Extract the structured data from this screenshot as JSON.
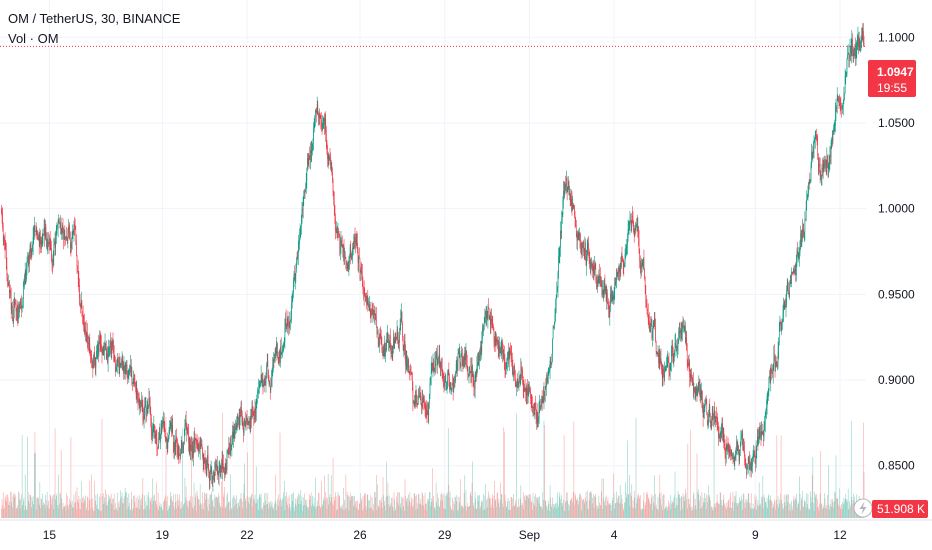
{
  "header": {
    "symbol_line": "OM / TetherUS, 30, BINANCE",
    "volume_line": "Vol · OM"
  },
  "price_tag": {
    "price": "1.0947",
    "countdown": "19:55",
    "color": "#f23645"
  },
  "volume_tag": {
    "value": "51.908 K",
    "color": "#f23645"
  },
  "colors": {
    "up": "#089981",
    "down": "#f23645",
    "volume_up": "#92d2c6",
    "volume_down": "#f7a9a7",
    "grid": "#f0f3fa",
    "axis_text": "#131722"
  },
  "icons": {
    "lightning": "lightning-icon"
  },
  "chart_data": {
    "type": "candlestick",
    "y_ticks": [
      "0.8500",
      "0.9000",
      "0.9500",
      "1.0000",
      "1.0500",
      "1.1000"
    ],
    "ylim": [
      0.83,
      1.113
    ],
    "x_ticks": [
      {
        "label": "15",
        "day": 15
      },
      {
        "label": "19",
        "day": 19
      },
      {
        "label": "22",
        "day": 22
      },
      {
        "label": "26",
        "day": 26
      },
      {
        "label": "29",
        "day": 29
      },
      {
        "label": "Sep",
        "day": 32
      },
      {
        "label": "4",
        "day": 35
      },
      {
        "label": "9",
        "day": 40
      },
      {
        "label": "12",
        "day": 43
      }
    ],
    "xlim_days": [
      13.25,
      43.92
    ],
    "last_price": 1.0947,
    "price_path": [
      [
        13.3,
        1.0
      ],
      [
        13.7,
        0.935
      ],
      [
        14.1,
        0.96
      ],
      [
        14.6,
        0.99
      ],
      [
        15.1,
        0.98
      ],
      [
        15.9,
        0.99
      ],
      [
        16.2,
        0.935
      ],
      [
        16.9,
        0.915
      ],
      [
        17.6,
        0.905
      ],
      [
        18.3,
        0.885
      ],
      [
        18.8,
        0.87
      ],
      [
        19.4,
        0.862
      ],
      [
        19.9,
        0.872
      ],
      [
        20.4,
        0.855
      ],
      [
        20.8,
        0.85
      ],
      [
        21.4,
        0.868
      ],
      [
        21.9,
        0.88
      ],
      [
        22.4,
        0.89
      ],
      [
        22.9,
        0.905
      ],
      [
        23.3,
        0.925
      ],
      [
        23.6,
        0.95
      ],
      [
        24.0,
        1.0
      ],
      [
        24.4,
        1.045
      ],
      [
        24.7,
        1.055
      ],
      [
        25.0,
        1.03
      ],
      [
        25.3,
        0.975
      ],
      [
        25.8,
        0.97
      ],
      [
        26.3,
        0.95
      ],
      [
        26.9,
        0.915
      ],
      [
        27.5,
        0.925
      ],
      [
        27.9,
        0.885
      ],
      [
        28.3,
        0.89
      ],
      [
        28.8,
        0.91
      ],
      [
        29.3,
        0.9
      ],
      [
        29.7,
        0.915
      ],
      [
        30.1,
        0.905
      ],
      [
        30.6,
        0.935
      ],
      [
        31.0,
        0.91
      ],
      [
        31.5,
        0.905
      ],
      [
        32.0,
        0.895
      ],
      [
        32.3,
        0.878
      ],
      [
        32.6,
        0.9
      ],
      [
        32.9,
        0.935
      ],
      [
        33.2,
        1.005
      ],
      [
        33.6,
        1.0
      ],
      [
        33.9,
        0.975
      ],
      [
        34.4,
        0.965
      ],
      [
        34.8,
        0.94
      ],
      [
        35.3,
        0.975
      ],
      [
        35.7,
        0.99
      ],
      [
        36.1,
        0.95
      ],
      [
        36.5,
        0.915
      ],
      [
        37.0,
        0.905
      ],
      [
        37.4,
        0.925
      ],
      [
        37.9,
        0.89
      ],
      [
        38.4,
        0.875
      ],
      [
        38.9,
        0.865
      ],
      [
        39.4,
        0.86
      ],
      [
        39.8,
        0.855
      ],
      [
        40.3,
        0.875
      ],
      [
        40.6,
        0.905
      ],
      [
        40.9,
        0.93
      ],
      [
        41.3,
        0.965
      ],
      [
        41.7,
        0.98
      ],
      [
        42.0,
        1.035
      ],
      [
        42.3,
        1.02
      ],
      [
        42.6,
        1.03
      ],
      [
        42.9,
        1.06
      ],
      [
        43.1,
        1.08
      ],
      [
        43.3,
        1.095
      ],
      [
        43.6,
        1.085
      ],
      [
        43.85,
        1.0947
      ]
    ],
    "volume_ylim": [
      0,
      140000
    ],
    "last_volume": 51908,
    "num_candles": 1416,
    "seed": 12
  }
}
